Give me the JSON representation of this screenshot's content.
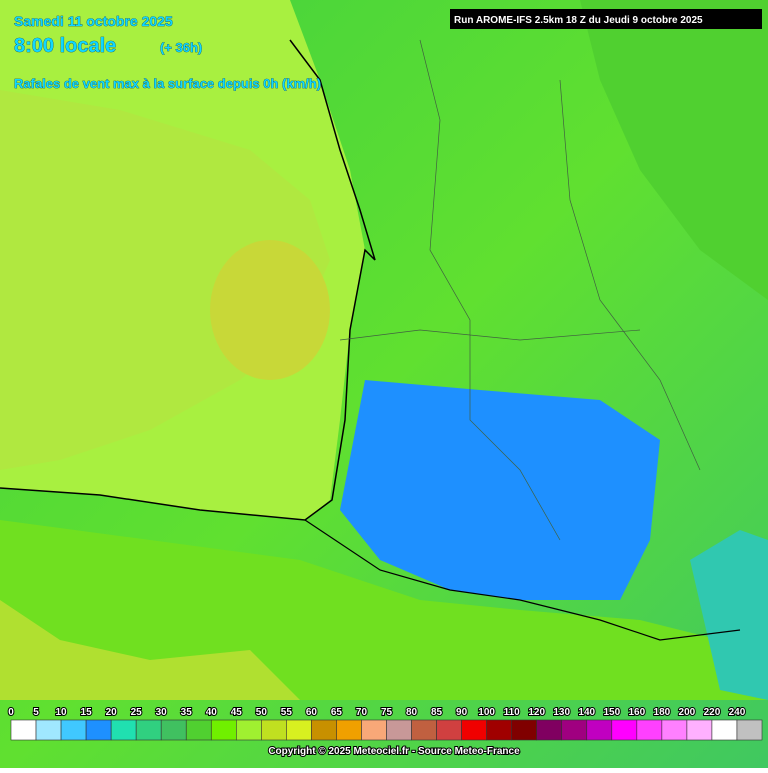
{
  "header": {
    "date": "Samedi 11 octobre 2025",
    "time": "8:00 locale",
    "offset": "(+ 36h)",
    "subtitle": "Rafales de vent max à la surface depuis 0h (km/h)",
    "run": "Run AROME-IFS 2.5km 18 Z du Jeudi 9 octobre 2025"
  },
  "legend": {
    "values": [
      0,
      5,
      10,
      15,
      20,
      25,
      30,
      35,
      40,
      45,
      50,
      55,
      60,
      65,
      70,
      75,
      80,
      85,
      90,
      100,
      110,
      120,
      130,
      140,
      150,
      160,
      180,
      200,
      220,
      240
    ],
    "colors": [
      "#ffffff",
      "#a0e8ff",
      "#40c8ff",
      "#1e90ff",
      "#20e0b0",
      "#30d080",
      "#40c060",
      "#50d030",
      "#70f000",
      "#a0f030",
      "#c0e020",
      "#d8f020",
      "#c89000",
      "#f0a000",
      "#f8a878",
      "#c89898",
      "#c06040",
      "#d04040",
      "#f00000",
      "#a00000",
      "#800000",
      "#800060",
      "#a00080",
      "#c000c0",
      "#ff00ff",
      "#ff40ff",
      "#ff80ff",
      "#ffb0ff",
      "#ffffff",
      "#c0c0c0"
    ]
  },
  "footer": {
    "copyright": "Copyright © 2025 Meteociel.fr - Source Meteo-France"
  }
}
